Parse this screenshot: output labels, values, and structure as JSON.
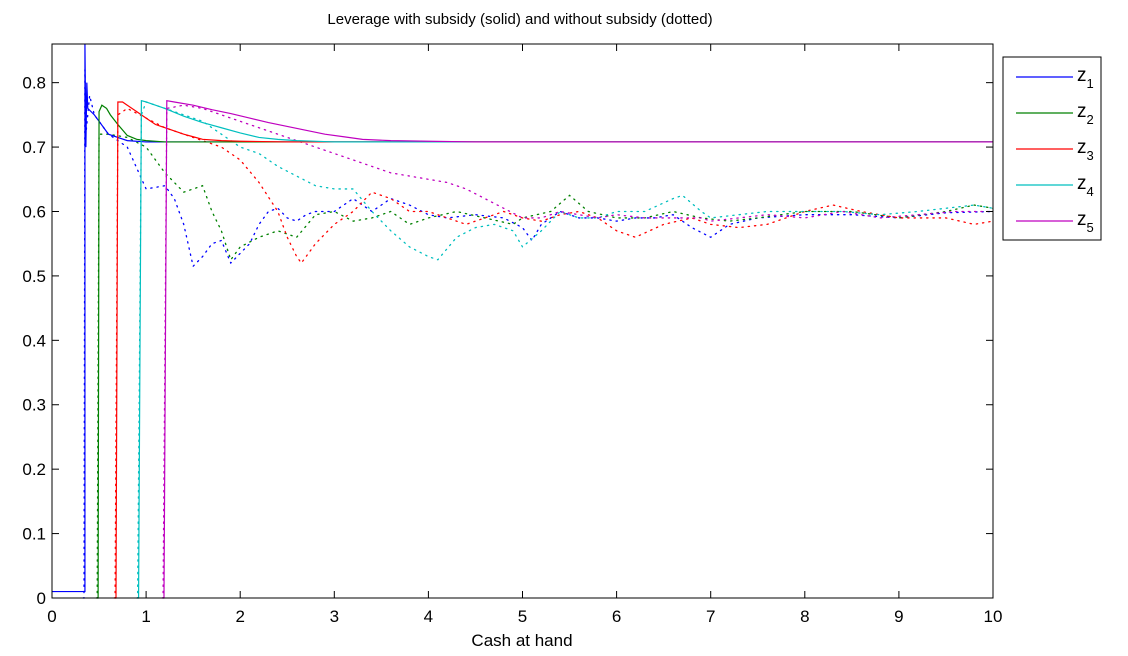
{
  "chart_data": {
    "type": "line",
    "title": "Leverage with subsidy (solid) and without subsidy (dotted)",
    "xlabel": "Cash at hand",
    "ylabel": "",
    "xlim": [
      0,
      10
    ],
    "ylim": [
      0,
      0.86
    ],
    "xticks": [
      "0",
      "1",
      "2",
      "3",
      "4",
      "5",
      "6",
      "7",
      "8",
      "9",
      "10"
    ],
    "yticks": [
      "0",
      "0.1",
      "0.2",
      "0.3",
      "0.4",
      "0.5",
      "0.6",
      "0.7",
      "0.8"
    ],
    "grid": false,
    "legend_position": "top-right",
    "series": [
      {
        "name": "z1",
        "label_base": "z",
        "label_sub": "1",
        "color": "#0000ff",
        "solid": [
          [
            0,
            0.01
          ],
          [
            0.35,
            0.01
          ],
          [
            0.35,
            0.86
          ],
          [
            0.36,
            0.7
          ],
          [
            0.37,
            0.8
          ],
          [
            0.38,
            0.76
          ],
          [
            0.45,
            0.75
          ],
          [
            0.5,
            0.74
          ],
          [
            0.55,
            0.73
          ],
          [
            0.6,
            0.72
          ],
          [
            0.7,
            0.715
          ],
          [
            0.8,
            0.71
          ],
          [
            1.0,
            0.708
          ],
          [
            1.5,
            0.708
          ],
          [
            10,
            0.708
          ]
        ],
        "dotted": [
          [
            0.33,
            0.0
          ],
          [
            0.34,
            0.0
          ],
          [
            0.35,
            0.82
          ],
          [
            0.36,
            0.72
          ],
          [
            0.4,
            0.78
          ],
          [
            0.45,
            0.75
          ],
          [
            0.6,
            0.72
          ],
          [
            0.8,
            0.7
          ],
          [
            1.0,
            0.635
          ],
          [
            1.2,
            0.64
          ],
          [
            1.3,
            0.62
          ],
          [
            1.4,
            0.58
          ],
          [
            1.5,
            0.515
          ],
          [
            1.6,
            0.53
          ],
          [
            1.7,
            0.55
          ],
          [
            1.8,
            0.555
          ],
          [
            1.9,
            0.52
          ],
          [
            2.0,
            0.535
          ],
          [
            2.1,
            0.55
          ],
          [
            2.2,
            0.58
          ],
          [
            2.3,
            0.6
          ],
          [
            2.4,
            0.605
          ],
          [
            2.5,
            0.59
          ],
          [
            2.6,
            0.585
          ],
          [
            2.7,
            0.595
          ],
          [
            2.8,
            0.6
          ],
          [
            3.0,
            0.6
          ],
          [
            3.2,
            0.62
          ],
          [
            3.4,
            0.6
          ],
          [
            3.6,
            0.62
          ],
          [
            3.8,
            0.61
          ],
          [
            4.0,
            0.595
          ],
          [
            4.2,
            0.59
          ],
          [
            4.5,
            0.595
          ],
          [
            4.8,
            0.59
          ],
          [
            5.0,
            0.575
          ],
          [
            5.1,
            0.555
          ],
          [
            5.2,
            0.58
          ],
          [
            5.4,
            0.6
          ],
          [
            5.6,
            0.59
          ],
          [
            5.8,
            0.59
          ],
          [
            6.0,
            0.585
          ],
          [
            6.2,
            0.59
          ],
          [
            6.4,
            0.59
          ],
          [
            6.6,
            0.595
          ],
          [
            6.8,
            0.575
          ],
          [
            7.0,
            0.56
          ],
          [
            7.2,
            0.58
          ],
          [
            7.5,
            0.59
          ],
          [
            8.0,
            0.595
          ],
          [
            8.5,
            0.595
          ],
          [
            9.0,
            0.59
          ],
          [
            9.5,
            0.598
          ],
          [
            10.0,
            0.6
          ]
        ]
      },
      {
        "name": "z2",
        "label_base": "z",
        "label_sub": "2",
        "color": "#008000",
        "solid": [
          [
            0.48,
            0.0
          ],
          [
            0.49,
            0.0
          ],
          [
            0.5,
            0.755
          ],
          [
            0.53,
            0.765
          ],
          [
            0.58,
            0.76
          ],
          [
            0.62,
            0.75
          ],
          [
            0.7,
            0.735
          ],
          [
            0.8,
            0.718
          ],
          [
            0.9,
            0.712
          ],
          [
            1.0,
            0.71
          ],
          [
            1.2,
            0.708
          ],
          [
            1.5,
            0.708
          ],
          [
            10,
            0.708
          ]
        ],
        "dotted": [
          [
            0.47,
            0.0
          ],
          [
            0.48,
            0.0
          ],
          [
            0.5,
            0.72
          ],
          [
            0.6,
            0.72
          ],
          [
            0.8,
            0.715
          ],
          [
            1.0,
            0.7
          ],
          [
            1.2,
            0.66
          ],
          [
            1.4,
            0.63
          ],
          [
            1.6,
            0.64
          ],
          [
            1.7,
            0.6
          ],
          [
            1.8,
            0.57
          ],
          [
            1.9,
            0.525
          ],
          [
            2.0,
            0.545
          ],
          [
            2.2,
            0.56
          ],
          [
            2.4,
            0.57
          ],
          [
            2.6,
            0.56
          ],
          [
            2.8,
            0.595
          ],
          [
            3.0,
            0.6
          ],
          [
            3.2,
            0.585
          ],
          [
            3.4,
            0.59
          ],
          [
            3.6,
            0.6
          ],
          [
            3.8,
            0.58
          ],
          [
            4.0,
            0.59
          ],
          [
            4.3,
            0.6
          ],
          [
            4.6,
            0.59
          ],
          [
            4.9,
            0.58
          ],
          [
            5.0,
            0.59
          ],
          [
            5.3,
            0.6
          ],
          [
            5.5,
            0.625
          ],
          [
            5.7,
            0.6
          ],
          [
            6.0,
            0.59
          ],
          [
            6.3,
            0.59
          ],
          [
            6.6,
            0.6
          ],
          [
            6.9,
            0.59
          ],
          [
            7.2,
            0.585
          ],
          [
            7.5,
            0.59
          ],
          [
            8.0,
            0.6
          ],
          [
            8.5,
            0.6
          ],
          [
            9.0,
            0.59
          ],
          [
            9.5,
            0.6
          ],
          [
            9.8,
            0.61
          ],
          [
            10.0,
            0.605
          ]
        ]
      },
      {
        "name": "z3",
        "label_base": "z",
        "label_sub": "3",
        "color": "#ff0000",
        "solid": [
          [
            0.67,
            0.0
          ],
          [
            0.68,
            0.0
          ],
          [
            0.7,
            0.77
          ],
          [
            0.75,
            0.77
          ],
          [
            0.8,
            0.765
          ],
          [
            0.9,
            0.755
          ],
          [
            1.0,
            0.745
          ],
          [
            1.1,
            0.735
          ],
          [
            1.2,
            0.73
          ],
          [
            1.3,
            0.725
          ],
          [
            1.4,
            0.72
          ],
          [
            1.5,
            0.716
          ],
          [
            1.6,
            0.712
          ],
          [
            1.8,
            0.71
          ],
          [
            2.0,
            0.709
          ],
          [
            2.5,
            0.708
          ],
          [
            10,
            0.708
          ]
        ],
        "dotted": [
          [
            0.66,
            0.0
          ],
          [
            0.67,
            0.0
          ],
          [
            0.7,
            0.75
          ],
          [
            0.8,
            0.76
          ],
          [
            1.0,
            0.745
          ],
          [
            1.2,
            0.73
          ],
          [
            1.4,
            0.72
          ],
          [
            1.6,
            0.71
          ],
          [
            1.8,
            0.7
          ],
          [
            2.0,
            0.68
          ],
          [
            2.2,
            0.645
          ],
          [
            2.4,
            0.6
          ],
          [
            2.5,
            0.56
          ],
          [
            2.6,
            0.53
          ],
          [
            2.65,
            0.52
          ],
          [
            2.8,
            0.55
          ],
          [
            3.0,
            0.58
          ],
          [
            3.2,
            0.6
          ],
          [
            3.4,
            0.63
          ],
          [
            3.6,
            0.62
          ],
          [
            3.8,
            0.6
          ],
          [
            4.0,
            0.6
          ],
          [
            4.2,
            0.59
          ],
          [
            4.4,
            0.58
          ],
          [
            4.6,
            0.59
          ],
          [
            4.8,
            0.6
          ],
          [
            5.0,
            0.59
          ],
          [
            5.2,
            0.585
          ],
          [
            5.4,
            0.595
          ],
          [
            5.6,
            0.6
          ],
          [
            5.8,
            0.59
          ],
          [
            6.0,
            0.57
          ],
          [
            6.2,
            0.56
          ],
          [
            6.5,
            0.58
          ],
          [
            6.8,
            0.59
          ],
          [
            7.0,
            0.58
          ],
          [
            7.3,
            0.575
          ],
          [
            7.6,
            0.58
          ],
          [
            8.0,
            0.6
          ],
          [
            8.3,
            0.61
          ],
          [
            8.6,
            0.6
          ],
          [
            9.0,
            0.59
          ],
          [
            9.5,
            0.59
          ],
          [
            9.8,
            0.58
          ],
          [
            10.0,
            0.585
          ]
        ]
      },
      {
        "name": "z4",
        "label_base": "z",
        "label_sub": "4",
        "color": "#00bfbf",
        "solid": [
          [
            0.91,
            0.0
          ],
          [
            0.92,
            0.0
          ],
          [
            0.95,
            0.772
          ],
          [
            1.0,
            0.77
          ],
          [
            1.2,
            0.76
          ],
          [
            1.4,
            0.748
          ],
          [
            1.6,
            0.738
          ],
          [
            1.8,
            0.73
          ],
          [
            2.0,
            0.722
          ],
          [
            2.2,
            0.715
          ],
          [
            2.4,
            0.712
          ],
          [
            2.6,
            0.71
          ],
          [
            3.0,
            0.708
          ],
          [
            10,
            0.708
          ]
        ],
        "dotted": [
          [
            0.9,
            0.0
          ],
          [
            0.91,
            0.0
          ],
          [
            0.95,
            0.75
          ],
          [
            1.0,
            0.77
          ],
          [
            1.2,
            0.76
          ],
          [
            1.4,
            0.75
          ],
          [
            1.6,
            0.74
          ],
          [
            1.8,
            0.72
          ],
          [
            2.0,
            0.7
          ],
          [
            2.2,
            0.69
          ],
          [
            2.4,
            0.67
          ],
          [
            2.6,
            0.655
          ],
          [
            2.8,
            0.64
          ],
          [
            3.0,
            0.635
          ],
          [
            3.2,
            0.635
          ],
          [
            3.4,
            0.6
          ],
          [
            3.6,
            0.57
          ],
          [
            3.8,
            0.545
          ],
          [
            4.0,
            0.53
          ],
          [
            4.1,
            0.525
          ],
          [
            4.3,
            0.56
          ],
          [
            4.5,
            0.575
          ],
          [
            4.7,
            0.58
          ],
          [
            4.9,
            0.57
          ],
          [
            5.0,
            0.545
          ],
          [
            5.2,
            0.57
          ],
          [
            5.4,
            0.6
          ],
          [
            5.6,
            0.59
          ],
          [
            5.8,
            0.59
          ],
          [
            6.0,
            0.6
          ],
          [
            6.3,
            0.6
          ],
          [
            6.6,
            0.62
          ],
          [
            6.7,
            0.625
          ],
          [
            6.9,
            0.6
          ],
          [
            7.0,
            0.59
          ],
          [
            7.3,
            0.595
          ],
          [
            7.6,
            0.6
          ],
          [
            8.0,
            0.6
          ],
          [
            8.4,
            0.6
          ],
          [
            8.8,
            0.595
          ],
          [
            9.2,
            0.6
          ],
          [
            9.5,
            0.605
          ],
          [
            9.8,
            0.61
          ],
          [
            10.0,
            0.605
          ]
        ]
      },
      {
        "name": "z5",
        "label_base": "z",
        "label_sub": "5",
        "color": "#bf00bf",
        "solid": [
          [
            1.18,
            0.0
          ],
          [
            1.19,
            0.0
          ],
          [
            1.22,
            0.772
          ],
          [
            1.3,
            0.77
          ],
          [
            1.5,
            0.765
          ],
          [
            1.7,
            0.758
          ],
          [
            1.9,
            0.752
          ],
          [
            2.1,
            0.745
          ],
          [
            2.3,
            0.738
          ],
          [
            2.5,
            0.732
          ],
          [
            2.7,
            0.726
          ],
          [
            2.9,
            0.72
          ],
          [
            3.1,
            0.716
          ],
          [
            3.3,
            0.712
          ],
          [
            3.6,
            0.71
          ],
          [
            4.0,
            0.709
          ],
          [
            4.5,
            0.708
          ],
          [
            10,
            0.708
          ]
        ],
        "dotted": [
          [
            1.17,
            0.0
          ],
          [
            1.18,
            0.0
          ],
          [
            1.22,
            0.76
          ],
          [
            1.4,
            0.765
          ],
          [
            1.6,
            0.76
          ],
          [
            1.8,
            0.75
          ],
          [
            2.0,
            0.74
          ],
          [
            2.2,
            0.73
          ],
          [
            2.4,
            0.72
          ],
          [
            2.6,
            0.71
          ],
          [
            2.8,
            0.7
          ],
          [
            3.0,
            0.69
          ],
          [
            3.2,
            0.68
          ],
          [
            3.4,
            0.67
          ],
          [
            3.6,
            0.66
          ],
          [
            3.8,
            0.655
          ],
          [
            4.0,
            0.65
          ],
          [
            4.2,
            0.645
          ],
          [
            4.4,
            0.635
          ],
          [
            4.6,
            0.62
          ],
          [
            4.8,
            0.605
          ],
          [
            5.0,
            0.59
          ],
          [
            5.2,
            0.59
          ],
          [
            5.4,
            0.6
          ],
          [
            5.6,
            0.595
          ],
          [
            5.8,
            0.59
          ],
          [
            6.0,
            0.595
          ],
          [
            6.3,
            0.59
          ],
          [
            6.6,
            0.59
          ],
          [
            6.9,
            0.59
          ],
          [
            7.0,
            0.585
          ],
          [
            7.3,
            0.59
          ],
          [
            7.6,
            0.595
          ],
          [
            8.0,
            0.59
          ],
          [
            8.4,
            0.6
          ],
          [
            8.8,
            0.59
          ],
          [
            9.2,
            0.595
          ],
          [
            9.6,
            0.6
          ],
          [
            10.0,
            0.6
          ]
        ]
      }
    ]
  }
}
